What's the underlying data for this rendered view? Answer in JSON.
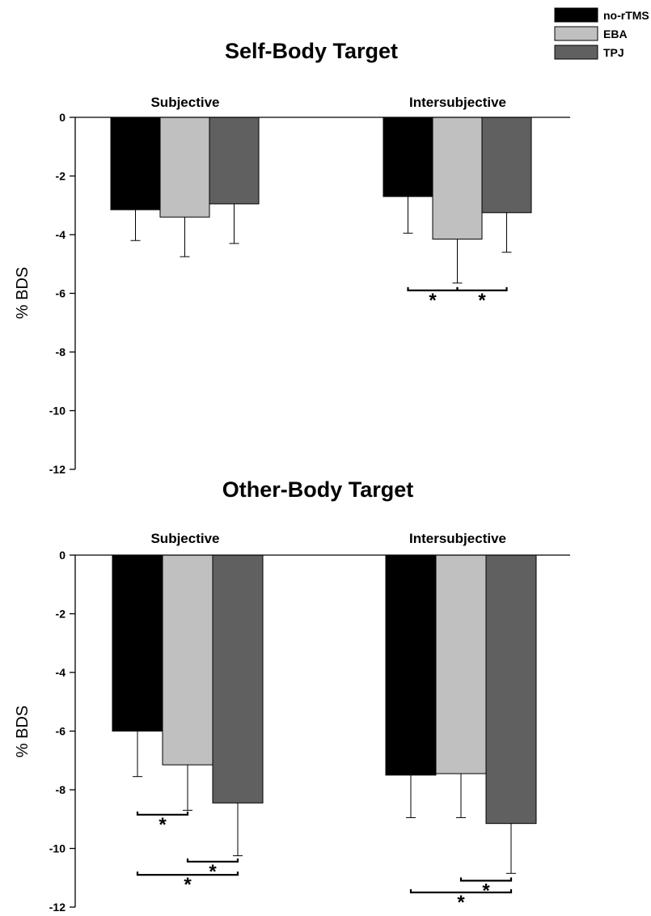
{
  "legend": [
    {
      "label": "no-rTMS",
      "color": "#000000"
    },
    {
      "label": "EBA",
      "color": "#c0c0c0"
    },
    {
      "label": "TPJ",
      "color": "#606060"
    }
  ],
  "chart_data": [
    {
      "type": "bar",
      "title": "Self-Body Target",
      "ylabel": "% BDS",
      "xlabel": "",
      "ylim": [
        -12,
        0
      ],
      "yticks": [
        0,
        -2,
        -4,
        -6,
        -8,
        -10,
        -12
      ],
      "categories": [
        "Subjective",
        "Intersubjective"
      ],
      "series": [
        {
          "name": "no-rTMS",
          "values": [
            -3.15,
            -2.7
          ],
          "errors": [
            1.05,
            1.25
          ]
        },
        {
          "name": "EBA",
          "values": [
            -3.4,
            -4.15
          ],
          "errors": [
            1.35,
            1.5
          ]
        },
        {
          "name": "TPJ",
          "values": [
            -2.95,
            -3.25
          ],
          "errors": [
            1.35,
            1.35
          ]
        }
      ],
      "significance": [
        {
          "category": "Intersubjective",
          "from": "no-rTMS",
          "to": "EBA",
          "y": -5.9,
          "label": "*"
        },
        {
          "category": "Intersubjective",
          "from": "EBA",
          "to": "TPJ",
          "y": -5.9,
          "label": "*"
        }
      ]
    },
    {
      "type": "bar",
      "title": "Other-Body Target",
      "ylabel": "% BDS",
      "xlabel": "",
      "ylim": [
        -12,
        0
      ],
      "yticks": [
        0,
        -2,
        -4,
        -6,
        -8,
        -10,
        -12
      ],
      "categories": [
        "Subjective",
        "Intersubjective"
      ],
      "series": [
        {
          "name": "no-rTMS",
          "values": [
            -6.0,
            -7.5
          ],
          "errors": [
            1.55,
            1.45
          ]
        },
        {
          "name": "EBA",
          "values": [
            -7.15,
            -7.45
          ],
          "errors": [
            1.55,
            1.5
          ]
        },
        {
          "name": "TPJ",
          "values": [
            -8.45,
            -9.15
          ],
          "errors": [
            1.8,
            1.7
          ]
        }
      ],
      "significance": [
        {
          "category": "Subjective",
          "from": "no-rTMS",
          "to": "EBA",
          "y": -8.85,
          "label": "*"
        },
        {
          "category": "Subjective",
          "from": "EBA",
          "to": "TPJ",
          "y": -10.45,
          "label": "*"
        },
        {
          "category": "Subjective",
          "from": "no-rTMS",
          "to": "TPJ",
          "y": -10.9,
          "label": "*"
        },
        {
          "category": "Intersubjective",
          "from": "EBA",
          "to": "TPJ",
          "y": -11.1,
          "label": "*"
        },
        {
          "category": "Intersubjective",
          "from": "no-rTMS",
          "to": "TPJ",
          "y": -11.5,
          "label": "*"
        }
      ]
    }
  ]
}
